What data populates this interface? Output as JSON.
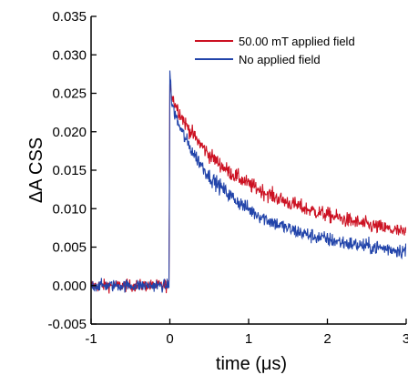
{
  "chart_data": {
    "type": "line",
    "title": "",
    "xlabel": "time (μs)",
    "ylabel": "ΔA CSS",
    "xlim": [
      -1,
      3
    ],
    "ylim": [
      -0.005,
      0.035
    ],
    "x_ticks": [
      "-1",
      "0",
      "1",
      "2",
      "3"
    ],
    "y_ticks": [
      "-0.005",
      "0.000",
      "0.005",
      "0.010",
      "0.015",
      "0.020",
      "0.025",
      "0.030",
      "0.035"
    ],
    "grid": false,
    "legend_position": "top-right",
    "series": [
      {
        "name": "50.00 mT applied field",
        "color": "#cc1122",
        "x": [
          -1.0,
          -0.5,
          -0.05,
          -0.01,
          0.0,
          0.02,
          0.05,
          0.1,
          0.2,
          0.3,
          0.5,
          0.75,
          1.0,
          1.25,
          1.5,
          1.75,
          2.0,
          2.25,
          2.5,
          2.75,
          3.0
        ],
        "y": [
          0.0,
          0.0,
          0.0,
          0.0,
          0.027,
          0.025,
          0.024,
          0.023,
          0.021,
          0.0195,
          0.017,
          0.0148,
          0.0132,
          0.0119,
          0.0108,
          0.0099,
          0.0092,
          0.0085,
          0.0079,
          0.0074,
          0.0068
        ]
      },
      {
        "name": "No applied field",
        "color": "#2244aa",
        "x": [
          -1.0,
          -0.5,
          -0.05,
          -0.01,
          0.0,
          0.02,
          0.05,
          0.1,
          0.2,
          0.3,
          0.5,
          0.75,
          1.0,
          1.25,
          1.5,
          1.75,
          2.0,
          2.25,
          2.5,
          2.75,
          3.0
        ],
        "y": [
          0.0,
          0.0,
          0.0,
          0.0,
          0.028,
          0.024,
          0.0228,
          0.0212,
          0.019,
          0.0172,
          0.0142,
          0.0118,
          0.0099,
          0.0085,
          0.0074,
          0.0066,
          0.006,
          0.0055,
          0.0051,
          0.0048,
          0.0045
        ]
      }
    ]
  }
}
